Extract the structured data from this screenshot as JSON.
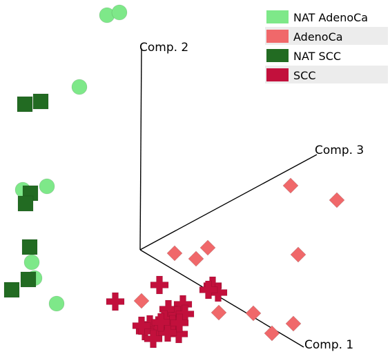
{
  "chart_data": {
    "type": "scatter",
    "projection": "3d",
    "axes": {
      "comp1": "Comp. 1",
      "comp2": "Comp. 2",
      "comp3": "Comp. 3"
    },
    "legend": {
      "placement": "top-right"
    },
    "grid": false,
    "series": [
      {
        "name": "NAT AdenoCa",
        "color": "#7ee889",
        "marker": "circle",
        "points": [
          [
            155,
            22
          ],
          [
            173,
            18
          ],
          [
            115,
            126
          ],
          [
            33,
            275
          ],
          [
            68,
            270
          ],
          [
            46,
            380
          ],
          [
            50,
            403
          ],
          [
            82,
            440
          ]
        ]
      },
      {
        "name": "AdenoCa",
        "color": "#f0686a",
        "marker": "diamond",
        "points": [
          [
            421,
            269
          ],
          [
            488,
            290
          ],
          [
            253,
            367
          ],
          [
            301,
            359
          ],
          [
            284,
            375
          ],
          [
            432,
            369
          ],
          [
            205,
            436
          ],
          [
            317,
            453
          ],
          [
            367,
            454
          ],
          [
            425,
            469
          ],
          [
            394,
            483
          ]
        ]
      },
      {
        "name": "NAT SCC",
        "color": "#226b22",
        "marker": "square",
        "points": [
          [
            36,
            151
          ],
          [
            59,
            147
          ],
          [
            44,
            280
          ],
          [
            37,
            295
          ],
          [
            43,
            358
          ],
          [
            41,
            405
          ],
          [
            17,
            420
          ]
        ]
      },
      {
        "name": "SCC",
        "color": "#c2103c",
        "marker": "cross",
        "points": [
          [
            231,
            413
          ],
          [
            167,
            437
          ],
          [
            308,
            414
          ],
          [
            316,
            424
          ],
          [
            302,
            420
          ],
          [
            265,
            441
          ],
          [
            244,
            448
          ],
          [
            257,
            457
          ],
          [
            268,
            455
          ],
          [
            217,
            470
          ],
          [
            228,
            478
          ],
          [
            238,
            463
          ],
          [
            250,
            470
          ],
          [
            210,
            480
          ],
          [
            222,
            491
          ],
          [
            259,
            484
          ],
          [
            243,
            482
          ],
          [
            233,
            467
          ],
          [
            205,
            472
          ],
          [
            260,
            468
          ]
        ]
      }
    ]
  }
}
